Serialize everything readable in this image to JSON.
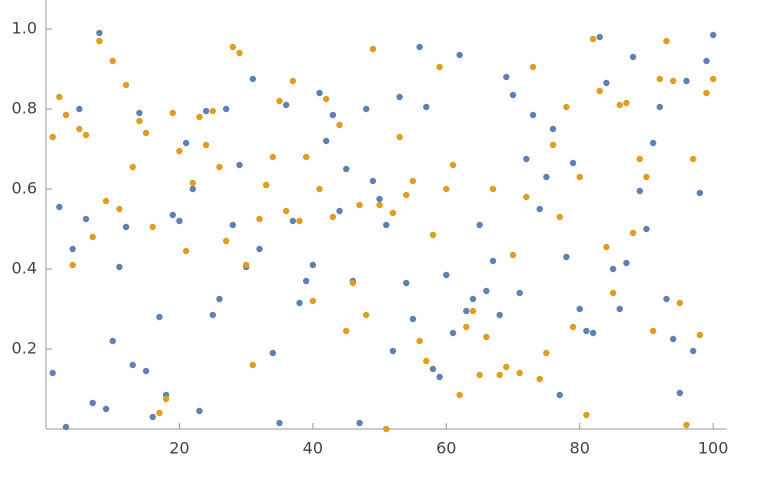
{
  "chart_data": {
    "type": "scatter",
    "x": [
      1,
      2,
      3,
      4,
      5,
      6,
      7,
      8,
      9,
      10,
      11,
      12,
      13,
      14,
      15,
      16,
      17,
      18,
      19,
      20,
      21,
      22,
      23,
      24,
      25,
      26,
      27,
      28,
      29,
      30,
      31,
      32,
      33,
      34,
      35,
      36,
      37,
      38,
      39,
      40,
      41,
      42,
      43,
      44,
      45,
      46,
      47,
      48,
      49,
      50,
      51,
      52,
      53,
      54,
      55,
      56,
      57,
      58,
      59,
      60,
      61,
      62,
      63,
      64,
      65,
      66,
      67,
      68,
      69,
      70,
      71,
      72,
      73,
      74,
      75,
      76,
      77,
      78,
      79,
      80,
      81,
      82,
      83,
      84,
      85,
      86,
      87,
      88,
      89,
      90,
      91,
      92,
      93,
      94,
      95,
      96,
      97,
      98,
      99,
      100
    ],
    "series": [
      {
        "color": "#5e81b5",
        "values": [
          0.14,
          0.555,
          0.005,
          0.45,
          0.8,
          0.525,
          0.065,
          0.99,
          0.05,
          0.22,
          0.405,
          0.505,
          0.16,
          0.79,
          0.145,
          0.03,
          0.28,
          0.085,
          0.535,
          0.52,
          0.715,
          0.6,
          0.045,
          0.795,
          0.285,
          0.325,
          0.8,
          0.51,
          0.66,
          0.405,
          0.875,
          0.45,
          0.61,
          0.19,
          0.015,
          0.81,
          0.52,
          0.315,
          0.37,
          0.41,
          0.84,
          0.72,
          0.785,
          0.545,
          0.65,
          0.37,
          0.015,
          0.8,
          0.62,
          0.575,
          0.51,
          0.195,
          0.83,
          0.365,
          0.275,
          0.955,
          0.805,
          0.15,
          0.13,
          0.385,
          0.24,
          0.935,
          0.295,
          0.325,
          0.51,
          0.345,
          0.42,
          0.285,
          0.88,
          0.835,
          0.34,
          0.675,
          0.785,
          0.55,
          0.63,
          0.75,
          0.085,
          0.43,
          0.665,
          0.3,
          0.245,
          0.24,
          0.98,
          0.865,
          0.4,
          0.3,
          0.415,
          0.93,
          0.595,
          0.5,
          0.715,
          0.805,
          0.325,
          0.225,
          0.09,
          0.87,
          0.195,
          0.59,
          0.92,
          0.985
        ]
      },
      {
        "color": "#e19c24",
        "values": [
          0.73,
          0.83,
          0.785,
          0.41,
          0.75,
          0.735,
          0.48,
          0.97,
          0.57,
          0.92,
          0.55,
          0.86,
          0.655,
          0.77,
          0.74,
          0.505,
          0.04,
          0.075,
          0.79,
          0.695,
          0.445,
          0.615,
          0.78,
          0.71,
          0.795,
          0.655,
          0.47,
          0.955,
          0.94,
          0.41,
          0.16,
          0.525,
          0.61,
          0.68,
          0.82,
          0.545,
          0.87,
          0.52,
          0.68,
          0.32,
          0.6,
          0.825,
          0.53,
          0.76,
          0.245,
          0.365,
          0.56,
          0.285,
          0.95,
          0.56,
          0,
          0.54,
          0.73,
          0.585,
          0.62,
          0.22,
          0.17,
          0.485,
          0.905,
          0.6,
          0.66,
          0.085,
          0.255,
          0.295,
          0.135,
          0.23,
          0.6,
          0.135,
          0.155,
          0.435,
          0.14,
          0.58,
          0.905,
          0.125,
          0.19,
          0.71,
          0.53,
          0.805,
          0.255,
          0.63,
          0.035,
          0.975,
          0.845,
          0.455,
          0.34,
          0.81,
          0.815,
          0.49,
          0.675,
          0.63,
          0.245,
          0.875,
          0.97,
          0.87,
          0.315,
          0.01,
          0.675,
          0.235,
          0.84,
          0.875
        ]
      }
    ],
    "xlim": [
      0,
      102
    ],
    "ylim": [
      0,
      1.07
    ],
    "xticks": [
      20,
      40,
      60,
      80,
      100
    ],
    "yticks": [
      0.2,
      0.4,
      0.6,
      0.8,
      {
        "value": 1,
        "label": "1.0"
      }
    ]
  }
}
